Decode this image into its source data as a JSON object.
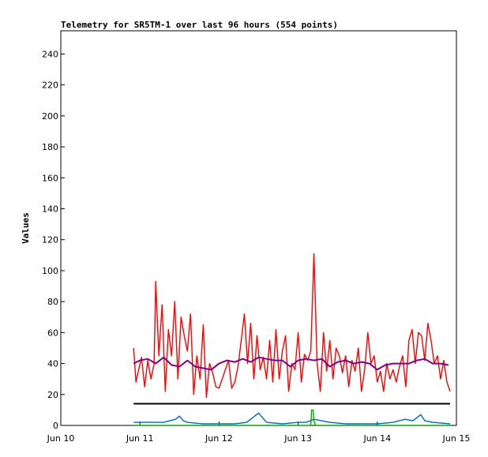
{
  "chart_data": {
    "type": "line",
    "title": "Telemetry for SR5TM-1 over last 96 hours (554 points)",
    "ylabel": "Values",
    "xlabel": "",
    "ylim": [
      0,
      255
    ],
    "xlim": [
      10.0,
      15.0
    ],
    "y_ticks": [
      0,
      20,
      40,
      60,
      80,
      100,
      120,
      140,
      160,
      180,
      200,
      220,
      240
    ],
    "x_ticks": [
      {
        "value": 10.0,
        "label": "Jun 10"
      },
      {
        "value": 11.0,
        "label": "Jun 11"
      },
      {
        "value": 12.0,
        "label": "Jun 12"
      },
      {
        "value": 13.0,
        "label": "Jun 13"
      },
      {
        "value": 14.0,
        "label": "Jun 14"
      },
      {
        "value": 15.0,
        "label": "Jun 15"
      }
    ],
    "grid": false,
    "legend": "none",
    "series": [
      {
        "color": "#ff0000",
        "x": [
          10.92,
          10.95,
          10.98,
          11.02,
          11.06,
          11.1,
          11.14,
          11.18,
          11.2,
          11.24,
          11.28,
          11.32,
          11.36,
          11.4,
          11.44,
          11.48,
          11.52,
          11.56,
          11.6,
          11.64,
          11.68,
          11.72,
          11.76,
          11.8,
          11.84,
          11.88,
          11.92,
          11.96,
          12.0,
          12.04,
          12.08,
          12.12,
          12.16,
          12.2,
          12.24,
          12.28,
          12.32,
          12.36,
          12.4,
          12.44,
          12.48,
          12.52,
          12.56,
          12.6,
          12.64,
          12.68,
          12.72,
          12.76,
          12.8,
          12.84,
          12.88,
          12.92,
          12.96,
          13.0,
          13.04,
          13.08,
          13.12,
          13.16,
          13.2,
          13.24,
          13.28,
          13.32,
          13.36,
          13.4,
          13.44,
          13.48,
          13.52,
          13.56,
          13.6,
          13.64,
          13.68,
          13.72,
          13.76,
          13.8,
          13.84,
          13.88,
          13.92,
          13.96,
          14.0,
          14.04,
          14.08,
          14.12,
          14.16,
          14.2,
          14.24,
          14.28,
          14.32,
          14.36,
          14.4,
          14.44,
          14.48,
          14.52,
          14.56,
          14.6,
          14.64,
          14.68,
          14.72,
          14.76,
          14.8,
          14.84,
          14.88,
          14.92
        ],
        "values": [
          50,
          28,
          35,
          44,
          25,
          42,
          30,
          40,
          93,
          45,
          78,
          22,
          62,
          45,
          80,
          30,
          70,
          58,
          48,
          72,
          20,
          45,
          30,
          65,
          18,
          40,
          34,
          25,
          24,
          30,
          36,
          42,
          24,
          28,
          38,
          55,
          72,
          40,
          66,
          30,
          58,
          36,
          44,
          30,
          55,
          28,
          62,
          30,
          48,
          58,
          22,
          40,
          36,
          60,
          28,
          46,
          42,
          48,
          111,
          40,
          22,
          60,
          35,
          55,
          30,
          50,
          45,
          34,
          45,
          25,
          42,
          35,
          50,
          22,
          36,
          60,
          40,
          45,
          28,
          35,
          22,
          40,
          30,
          36,
          28,
          38,
          45,
          25,
          55,
          62,
          40,
          60,
          58,
          42,
          66,
          55,
          40,
          45,
          30,
          42,
          28,
          22
        ]
      },
      {
        "color": "#800080",
        "x": [
          10.92,
          11.0,
          11.1,
          11.2,
          11.3,
          11.4,
          11.5,
          11.6,
          11.7,
          11.8,
          11.9,
          12.0,
          12.1,
          12.2,
          12.3,
          12.4,
          12.5,
          12.6,
          12.7,
          12.8,
          12.9,
          13.0,
          13.1,
          13.2,
          13.3,
          13.4,
          13.5,
          13.6,
          13.7,
          13.8,
          13.9,
          14.0,
          14.1,
          14.2,
          14.3,
          14.4,
          14.5,
          14.6,
          14.7,
          14.8,
          14.9
        ],
        "values": [
          40,
          42,
          43,
          40,
          44,
          39,
          38,
          42,
          38,
          37,
          36,
          40,
          42,
          41,
          43,
          41,
          44,
          43,
          42,
          42,
          38,
          42,
          43,
          42,
          43,
          38,
          41,
          42,
          40,
          41,
          40,
          36,
          39,
          40,
          40,
          40,
          42,
          43,
          40,
          40,
          39
        ]
      },
      {
        "color": "#000000",
        "x": [
          10.92,
          14.92
        ],
        "values": [
          14,
          14
        ]
      },
      {
        "color": "#0066cc",
        "x": [
          10.92,
          11.1,
          11.3,
          11.45,
          11.5,
          11.55,
          11.6,
          11.8,
          12.0,
          12.2,
          12.35,
          12.45,
          12.5,
          12.6,
          12.8,
          13.0,
          13.1,
          13.2,
          13.4,
          13.6,
          13.8,
          14.0,
          14.2,
          14.35,
          14.45,
          14.55,
          14.6,
          14.7,
          14.92
        ],
        "values": [
          2,
          2,
          2,
          4,
          6,
          3,
          2,
          1,
          1,
          1,
          2,
          6,
          8,
          2,
          1,
          2,
          2,
          4,
          2,
          1,
          1,
          1,
          2,
          4,
          3,
          7,
          3,
          2,
          1
        ]
      },
      {
        "color": "#00aa00",
        "x": [
          10.92,
          13.16,
          13.17,
          13.19,
          13.2,
          13.22,
          14.92
        ],
        "values": [
          0,
          0,
          10,
          10,
          3,
          0,
          0
        ]
      }
    ]
  }
}
